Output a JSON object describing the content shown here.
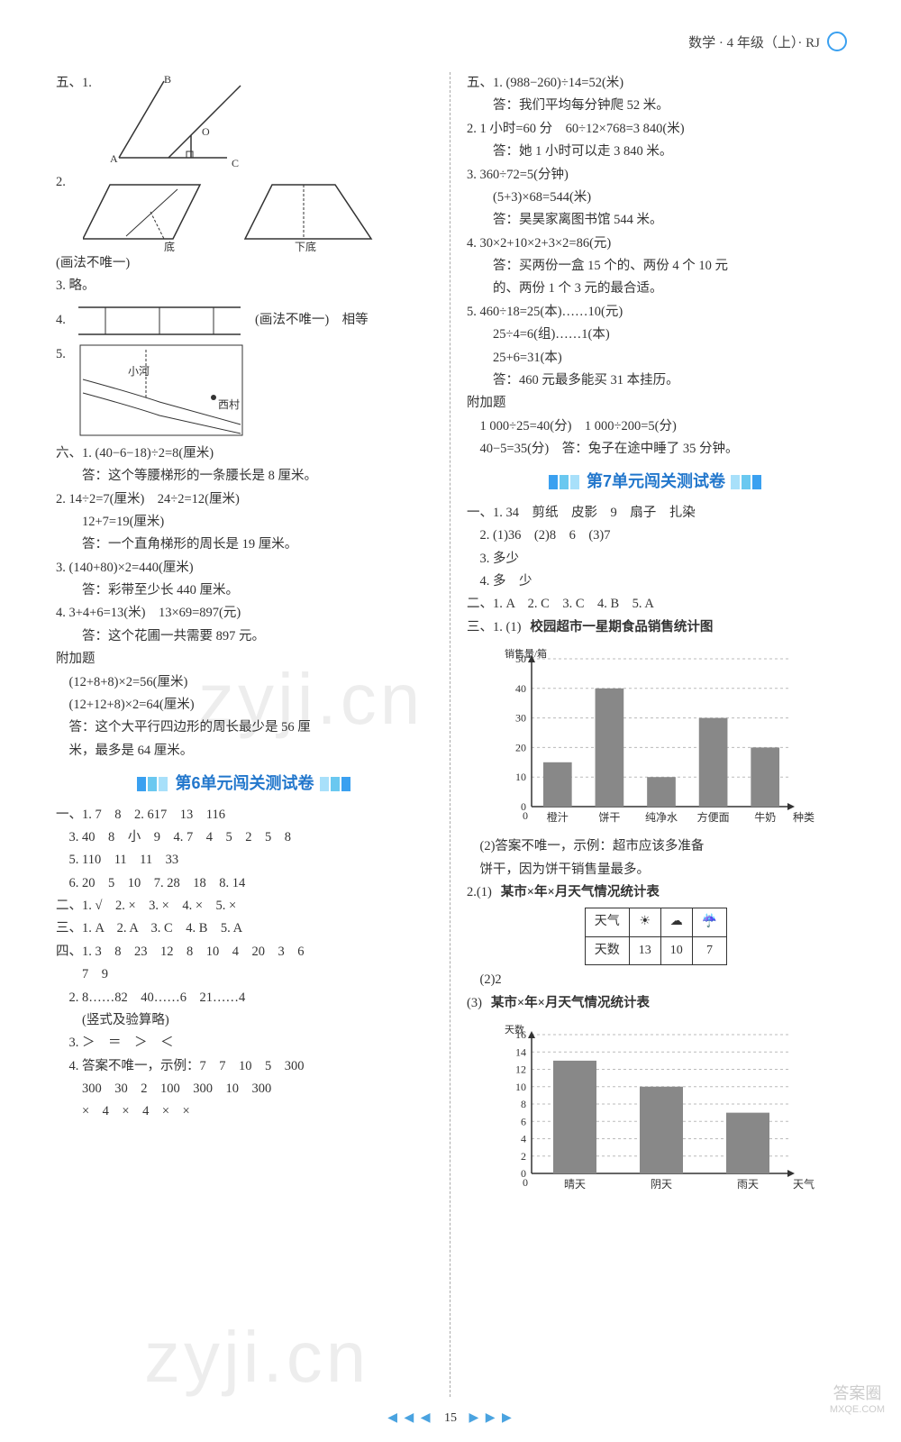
{
  "header": {
    "text": "数学 · 4 年级（上）· RJ"
  },
  "footer": {
    "page": "15",
    "left_tri": "◀ ◀ ◀",
    "right_tri": "▶ ▶ ▶"
  },
  "left": {
    "sec5": {
      "p1": "五、1.",
      "diag1_labels": {
        "A": "A",
        "B": "B",
        "C": "C",
        "O": "O"
      },
      "p2": "2.",
      "diag2_labels": {
        "di": "底",
        "xiadi": "下底"
      },
      "p3": "(画法不唯一)",
      "p4": "3. 略。",
      "p5a": "4.",
      "p5b": "(画法不唯一)　相等",
      "p6": "5.",
      "diag5_labels": {
        "river": "小河",
        "village": "西村"
      }
    },
    "sec6": {
      "l1": "六、1. (40−6−18)÷2=8(厘米)",
      "l1a": "　　答：这个等腰梯形的一条腰长是 8 厘米。",
      "l2": "2. 14÷2=7(厘米)　24÷2=12(厘米)",
      "l2a": "　　12+7=19(厘米)",
      "l2b": "　　答：一个直角梯形的周长是 19 厘米。",
      "l3": "3. (140+80)×2=440(厘米)",
      "l3a": "　　答：彩带至少长 440 厘米。",
      "l4": "4. 3+4+6=13(米)　13×69=897(元)",
      "l4a": "　　答：这个花圃一共需要 897 元。"
    },
    "extra": {
      "h": "附加题",
      "l1": "　(12+8+8)×2=56(厘米)",
      "l2": "　(12+12+8)×2=64(厘米)",
      "l3": "　答：这个大平行四边形的周长最少是 56 厘",
      "l4": "　米，最多是 64 厘米。"
    },
    "unit6_title": "第6单元闯关测试卷",
    "u6": {
      "a1": "一、1. 7　8　2. 617　13　116",
      "a2": "　3. 40　8　小　9　4. 7　4　5　2　5　8",
      "a3": "　5. 110　11　11　33",
      "a4": "　6. 20　5　10　7. 28　18　8. 14",
      "b1": "二、1. √　2. ×　3. ×　4. ×　5. ×",
      "c1": "三、1. A　2. A　3. C　4. B　5. A",
      "d1": "四、1. 3　8　23　12　8　10　4　20　3　6",
      "d1a": "　　7　9",
      "d2": "　2. 8……82　40……6　21……4",
      "d2a": "　　(竖式及验算略)",
      "d3": "　3. ＞　＝　＞　＜",
      "d4": "　4. 答案不唯一，示例：7　7　10　5　300",
      "d4a": "　　300　30　2　100　300　10　300",
      "d4b": "　　×　4　×　4　×　×"
    }
  },
  "right": {
    "sec5": {
      "l1": "五、1. (988−260)÷14=52(米)",
      "l1a": "　　答：我们平均每分钟爬 52 米。",
      "l2": "2. 1 小时=60 分　60÷12×768=3 840(米)",
      "l2a": "　　答：她 1 小时可以走 3 840 米。",
      "l3": "3. 360÷72=5(分钟)",
      "l3a": "　　(5+3)×68=544(米)",
      "l3b": "　　答：昊昊家离图书馆 544 米。",
      "l4": "4. 30×2+10×2+3×2=86(元)",
      "l4a": "　　答：买两份一盒 15 个的、两份 4 个 10 元",
      "l4b": "　　的、两份 1 个 3 元的最合适。",
      "l5": "5. 460÷18=25(本)……10(元)",
      "l5a": "　　25÷4=6(组)……1(本)",
      "l5b": "　　25+6=31(本)",
      "l5c": "　　答：460 元最多能买 31 本挂历。"
    },
    "extra": {
      "h": "附加题",
      "l1": "　1 000÷25=40(分)　1 000÷200=5(分)",
      "l2": "　40−5=35(分)　答：兔子在途中睡了 35 分钟。"
    },
    "unit7_title": "第7单元闯关测试卷",
    "u7": {
      "a1": "一、1. 34　剪纸　皮影　9　扇子　扎染",
      "a2": "　2. (1)36　(2)8　6　(3)7",
      "a3": "　3. 多少",
      "a4": "　4. 多　少",
      "b1": "二、1. A　2. C　3. C　4. B　5. A",
      "c1_label": "三、1. (1)",
      "chart1_title": "校园超市一星期食品销售统计图",
      "chart1_ylabel": "销售量/箱",
      "chart1_xlabel": "种类",
      "chart1": {
        "categories": [
          "橙汁",
          "饼干",
          "纯净水",
          "方便面",
          "牛奶"
        ],
        "values": [
          15,
          40,
          10,
          30,
          20
        ],
        "ylim": [
          0,
          50
        ],
        "ytick_step": 10,
        "bar_color": "#888888",
        "grid_color": "#bbbbbb",
        "bar_width": 0.55
      },
      "c2": "　(2)答案不唯一，示例：超市应该多准备",
      "c2a": "　饼干，因为饼干销售量最多。",
      "d_label": "2.(1)",
      "table_title": "某市×年×月天气情况统计表",
      "table": {
        "header": [
          "天气",
          "☀",
          "☁",
          "☔"
        ],
        "row": [
          "天数",
          "13",
          "10",
          "7"
        ]
      },
      "d2": "　(2)2",
      "d3_label": "(3)",
      "chart2_title": "某市×年×月天气情况统计表",
      "chart2_ylabel": "天数",
      "chart2_xlabel": "天气",
      "chart2": {
        "categories": [
          "晴天",
          "阴天",
          "雨天"
        ],
        "values": [
          13,
          10,
          7
        ],
        "ylim": [
          0,
          16
        ],
        "ytick_step": 2,
        "bar_color": "#888888",
        "grid_color": "#bbbbbb",
        "bar_width": 0.5
      }
    }
  },
  "colors": {
    "banner_blue": "#3aa0f0",
    "banner_cyan": "#6ac8f0",
    "title_text": "#2277cc"
  },
  "watermarks": {
    "w1": "zyji.cn",
    "w2": "zyji.cn"
  },
  "corner": {
    "t1": "答案圈",
    "t2": "MXQE.COM"
  }
}
